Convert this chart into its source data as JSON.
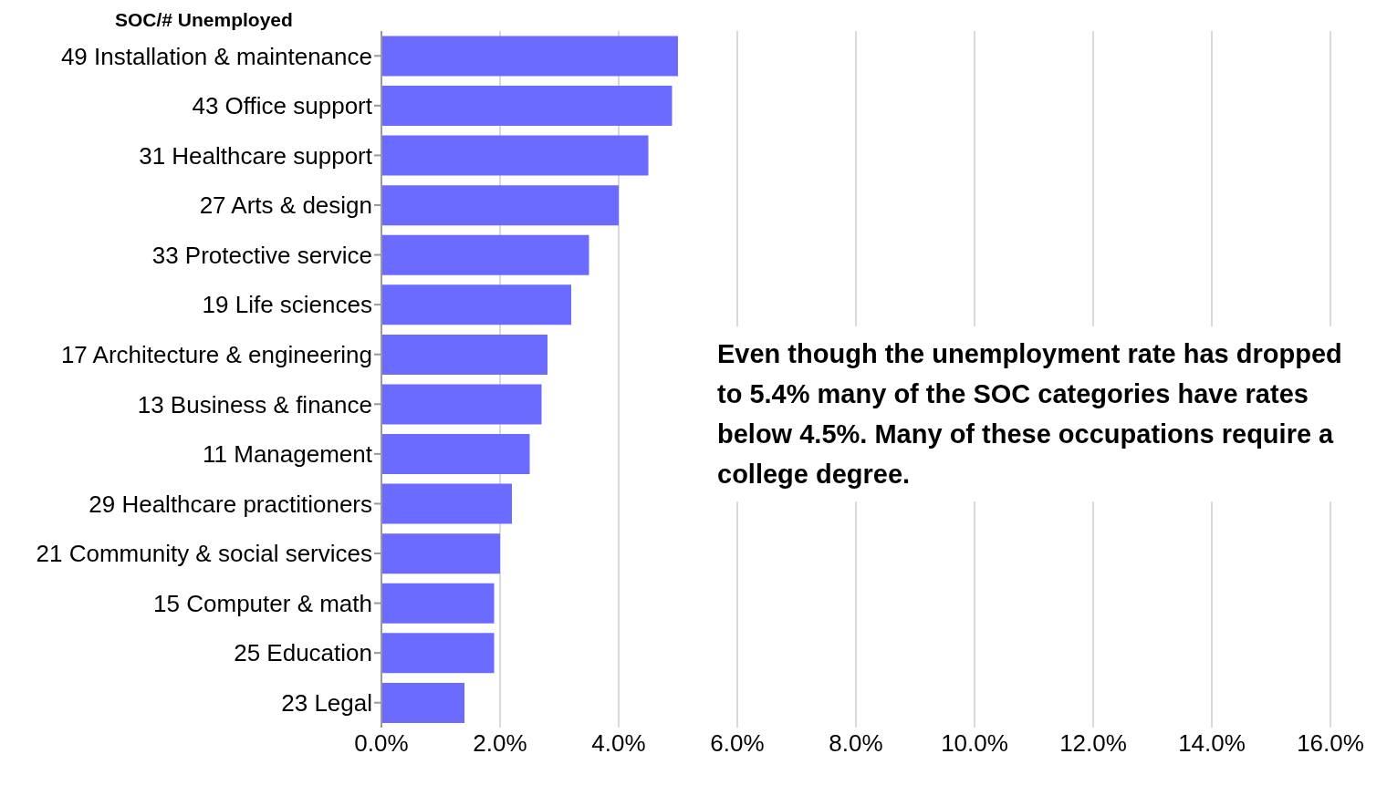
{
  "chart_data": {
    "type": "bar",
    "orientation": "horizontal",
    "title": "SOC/# Unemployed",
    "categories": [
      "49 Installation & maintenance",
      "43 Office support",
      "31 Healthcare support",
      "27 Arts & design",
      "33 Protective service",
      "19 Life sciences",
      "17 Architecture & engineering",
      "13 Business & finance",
      "11 Management",
      "29 Healthcare practitioners",
      "21 Community & social services",
      "15 Computer & math",
      "25 Education",
      "23 Legal"
    ],
    "values": [
      5.0,
      4.9,
      4.5,
      4.0,
      3.5,
      3.2,
      2.8,
      2.7,
      2.5,
      2.2,
      2.0,
      1.9,
      1.9,
      1.4
    ],
    "color": "#6b6bff",
    "xlim": [
      0,
      16
    ],
    "xticks": [
      {
        "value": 0,
        "label": "0.0%"
      },
      {
        "value": 2,
        "label": "2.0%"
      },
      {
        "value": 4,
        "label": "4.0%"
      },
      {
        "value": 6,
        "label": "6.0%"
      },
      {
        "value": 8,
        "label": "8.0%"
      },
      {
        "value": 10,
        "label": "10.0%"
      },
      {
        "value": 12,
        "label": "12.0%"
      },
      {
        "value": 14,
        "label": "14.0%"
      },
      {
        "value": 16,
        "label": "16.0%"
      }
    ],
    "grid": "x",
    "annotations": [
      "Even though the unemployment rate has dropped to 5.4% many of the SOC categories have rates below 4.5%. Many of these occupations require a college degree."
    ]
  }
}
